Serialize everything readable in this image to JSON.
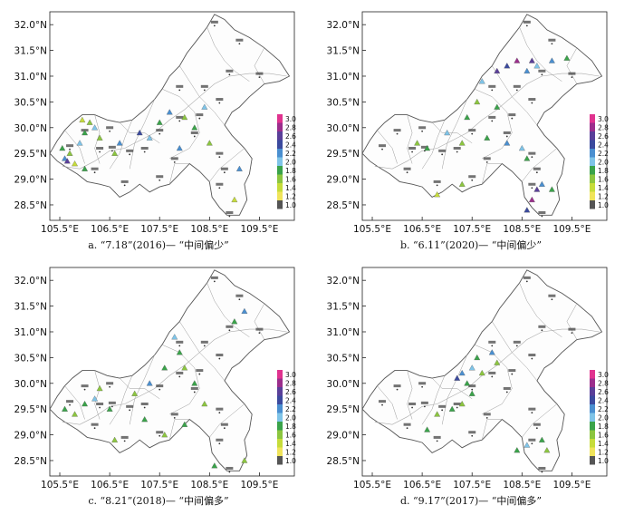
{
  "lat_labels": [
    "32.0°N",
    "31.5°N",
    "31.0°N",
    "30.5°N",
    "30.0°N",
    "29.5°N",
    "29.0°N",
    "28.5°N"
  ],
  "lon_labels": [
    "105.5°E",
    "106.5°E",
    "107.5°E",
    "108.5°E",
    "109.5°E"
  ],
  "lat_values": [
    32.0,
    31.5,
    31.0,
    30.5,
    30.0,
    29.5,
    29.0,
    28.5
  ],
  "lon_values": [
    105.5,
    106.5,
    107.5,
    108.5,
    109.5
  ],
  "legend_labels": [
    "3.0",
    "2.8",
    "2.6",
    "2.4",
    "2.2",
    "2.0",
    "1.8",
    "1.6",
    "1.4",
    "1.2",
    "1.0"
  ],
  "legend_colors": [
    "#e0338f",
    "#9b2e8c",
    "#5a3f99",
    "#3b4a9e",
    "#4a8fd0",
    "#7fc4e8",
    "#3aa34a",
    "#8cc63f",
    "#c6dc3a",
    "#f0e45a",
    "#555555"
  ],
  "panels": [
    {
      "caption": "a. “7.18”(2016)—  “中间偏少”",
      "points": [
        [
          105.55,
          29.6,
          1.8
        ],
        [
          105.6,
          29.4,
          2.2
        ],
        [
          105.7,
          29.5,
          1.6
        ],
        [
          105.65,
          29.35,
          2.6
        ],
        [
          105.8,
          29.3,
          1.4
        ],
        [
          105.9,
          29.7,
          2.0
        ],
        [
          106.0,
          29.9,
          1.8
        ],
        [
          106.1,
          30.1,
          1.6
        ],
        [
          105.95,
          30.15,
          1.4
        ],
        [
          106.2,
          30.0,
          2.0
        ],
        [
          106.3,
          29.8,
          1.6
        ],
        [
          106.0,
          29.2,
          1.8
        ],
        [
          106.7,
          29.7,
          2.2
        ],
        [
          107.1,
          29.9,
          2.4
        ],
        [
          107.3,
          29.8,
          2.0
        ],
        [
          107.5,
          30.1,
          1.8
        ],
        [
          107.7,
          30.3,
          2.2
        ],
        [
          108.0,
          30.2,
          1.6
        ],
        [
          108.2,
          30.0,
          1.8
        ],
        [
          108.4,
          30.4,
          2.0
        ],
        [
          108.5,
          29.7,
          1.6
        ],
        [
          107.9,
          29.6,
          2.2
        ],
        [
          109.1,
          29.2,
          2.2
        ],
        [
          109.0,
          28.6,
          1.4
        ],
        [
          106.6,
          29.5,
          1.6
        ]
      ]
    },
    {
      "caption": "b. “6.11”(2020)—  “中间偏少”",
      "points": [
        [
          108.2,
          31.2,
          2.4
        ],
        [
          108.4,
          31.3,
          2.8
        ],
        [
          108.6,
          31.1,
          2.2
        ],
        [
          108.7,
          31.3,
          2.6
        ],
        [
          108.8,
          31.2,
          2.0
        ],
        [
          109.1,
          31.3,
          2.2
        ],
        [
          109.4,
          31.35,
          1.8
        ],
        [
          108.0,
          31.1,
          2.6
        ],
        [
          107.7,
          30.9,
          2.0
        ],
        [
          107.6,
          30.5,
          1.6
        ],
        [
          107.4,
          30.2,
          1.8
        ],
        [
          106.4,
          29.7,
          1.6
        ],
        [
          106.6,
          29.6,
          1.8
        ],
        [
          107.0,
          29.9,
          2.0
        ],
        [
          107.3,
          29.7,
          1.6
        ],
        [
          107.8,
          29.8,
          1.8
        ],
        [
          108.2,
          29.7,
          2.2
        ],
        [
          108.5,
          29.6,
          2.0
        ],
        [
          108.6,
          29.4,
          1.8
        ],
        [
          108.8,
          28.8,
          2.6
        ],
        [
          108.7,
          28.6,
          2.8
        ],
        [
          108.6,
          28.4,
          2.4
        ],
        [
          108.9,
          28.9,
          2.2
        ],
        [
          109.1,
          28.8,
          1.8
        ],
        [
          107.3,
          28.9,
          1.6
        ],
        [
          106.8,
          28.7,
          1.4
        ],
        [
          108.0,
          30.4,
          1.8
        ]
      ]
    },
    {
      "caption": "c. “8.21”(2018)—  “中间偏多”",
      "points": [
        [
          105.6,
          29.5,
          1.8
        ],
        [
          105.8,
          29.4,
          1.6
        ],
        [
          106.0,
          29.6,
          1.8
        ],
        [
          106.2,
          29.7,
          2.0
        ],
        [
          106.3,
          29.9,
          1.6
        ],
        [
          106.5,
          29.5,
          1.8
        ],
        [
          107.0,
          29.8,
          1.6
        ],
        [
          107.3,
          30.0,
          2.2
        ],
        [
          107.6,
          30.3,
          1.8
        ],
        [
          107.8,
          30.9,
          2.0
        ],
        [
          107.9,
          30.6,
          1.8
        ],
        [
          108.0,
          30.3,
          1.6
        ],
        [
          108.2,
          30.0,
          1.8
        ],
        [
          108.4,
          29.6,
          1.6
        ],
        [
          108.0,
          29.2,
          1.8
        ],
        [
          107.6,
          29.0,
          1.6
        ],
        [
          107.2,
          29.3,
          1.8
        ],
        [
          106.6,
          28.9,
          1.6
        ],
        [
          109.2,
          31.4,
          2.2
        ],
        [
          109.0,
          31.2,
          1.8
        ],
        [
          108.6,
          28.4,
          1.8
        ],
        [
          109.2,
          28.5,
          1.6
        ]
      ]
    },
    {
      "caption": "d. “9.17”(2017)—  “中间偏多”",
      "points": [
        [
          107.2,
          30.1,
          2.4
        ],
        [
          107.3,
          30.2,
          2.2
        ],
        [
          107.4,
          30.0,
          1.8
        ],
        [
          107.5,
          30.3,
          2.0
        ],
        [
          107.6,
          30.5,
          1.8
        ],
        [
          107.7,
          30.2,
          1.6
        ],
        [
          107.9,
          30.6,
          2.2
        ],
        [
          108.0,
          30.4,
          1.6
        ],
        [
          107.5,
          29.8,
          1.8
        ],
        [
          107.3,
          29.6,
          1.6
        ],
        [
          107.1,
          29.5,
          1.8
        ],
        [
          106.8,
          29.4,
          1.6
        ],
        [
          108.4,
          28.7,
          1.8
        ],
        [
          108.6,
          28.8,
          2.0
        ],
        [
          108.9,
          28.9,
          1.8
        ],
        [
          109.0,
          28.7,
          1.6
        ],
        [
          106.6,
          29.1,
          1.8
        ]
      ]
    }
  ]
}
